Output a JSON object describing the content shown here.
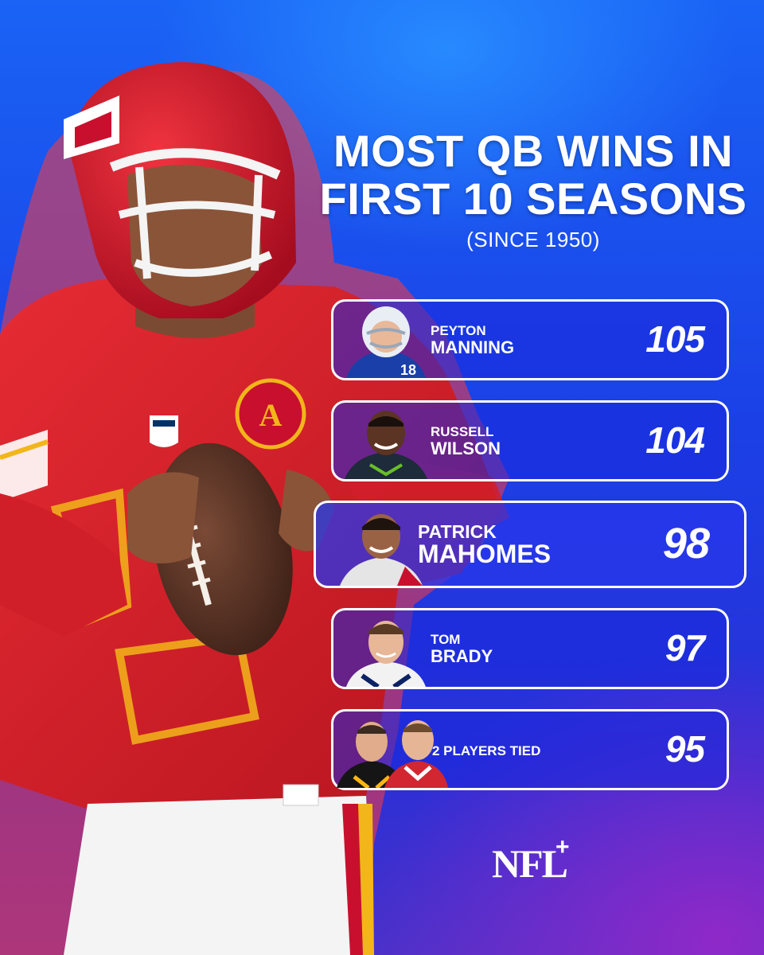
{
  "title": {
    "line1": "MOST QB WINS IN",
    "line2": "FIRST 10 SEASONS"
  },
  "subtitle": "(SINCE 1950)",
  "rankings": [
    {
      "first": "PEYTON",
      "last": "MANNING",
      "wins": "105"
    },
    {
      "first": "RUSSELL",
      "last": "WILSON",
      "wins": "104"
    },
    {
      "first": "PATRICK",
      "last": "MAHOMES",
      "wins": "98"
    },
    {
      "first": "TOM",
      "last": "BRADY",
      "wins": "97"
    },
    {
      "label": "2 PLAYERS TIED",
      "wins": "95"
    }
  ],
  "brand": {
    "logo_text": "NFL+",
    "name": "NFL+"
  },
  "colors": {
    "background_top": "#1a63f5",
    "background_bottom": "#4b31c9",
    "card_border": "#ffffff",
    "jersey_red": "#d8202a",
    "helmet_red": "#c8102e",
    "gold": "#f2b61a"
  },
  "icons": [
    "helmet-icon",
    "football-icon",
    "nfl-shield-icon",
    "player-headshot"
  ]
}
